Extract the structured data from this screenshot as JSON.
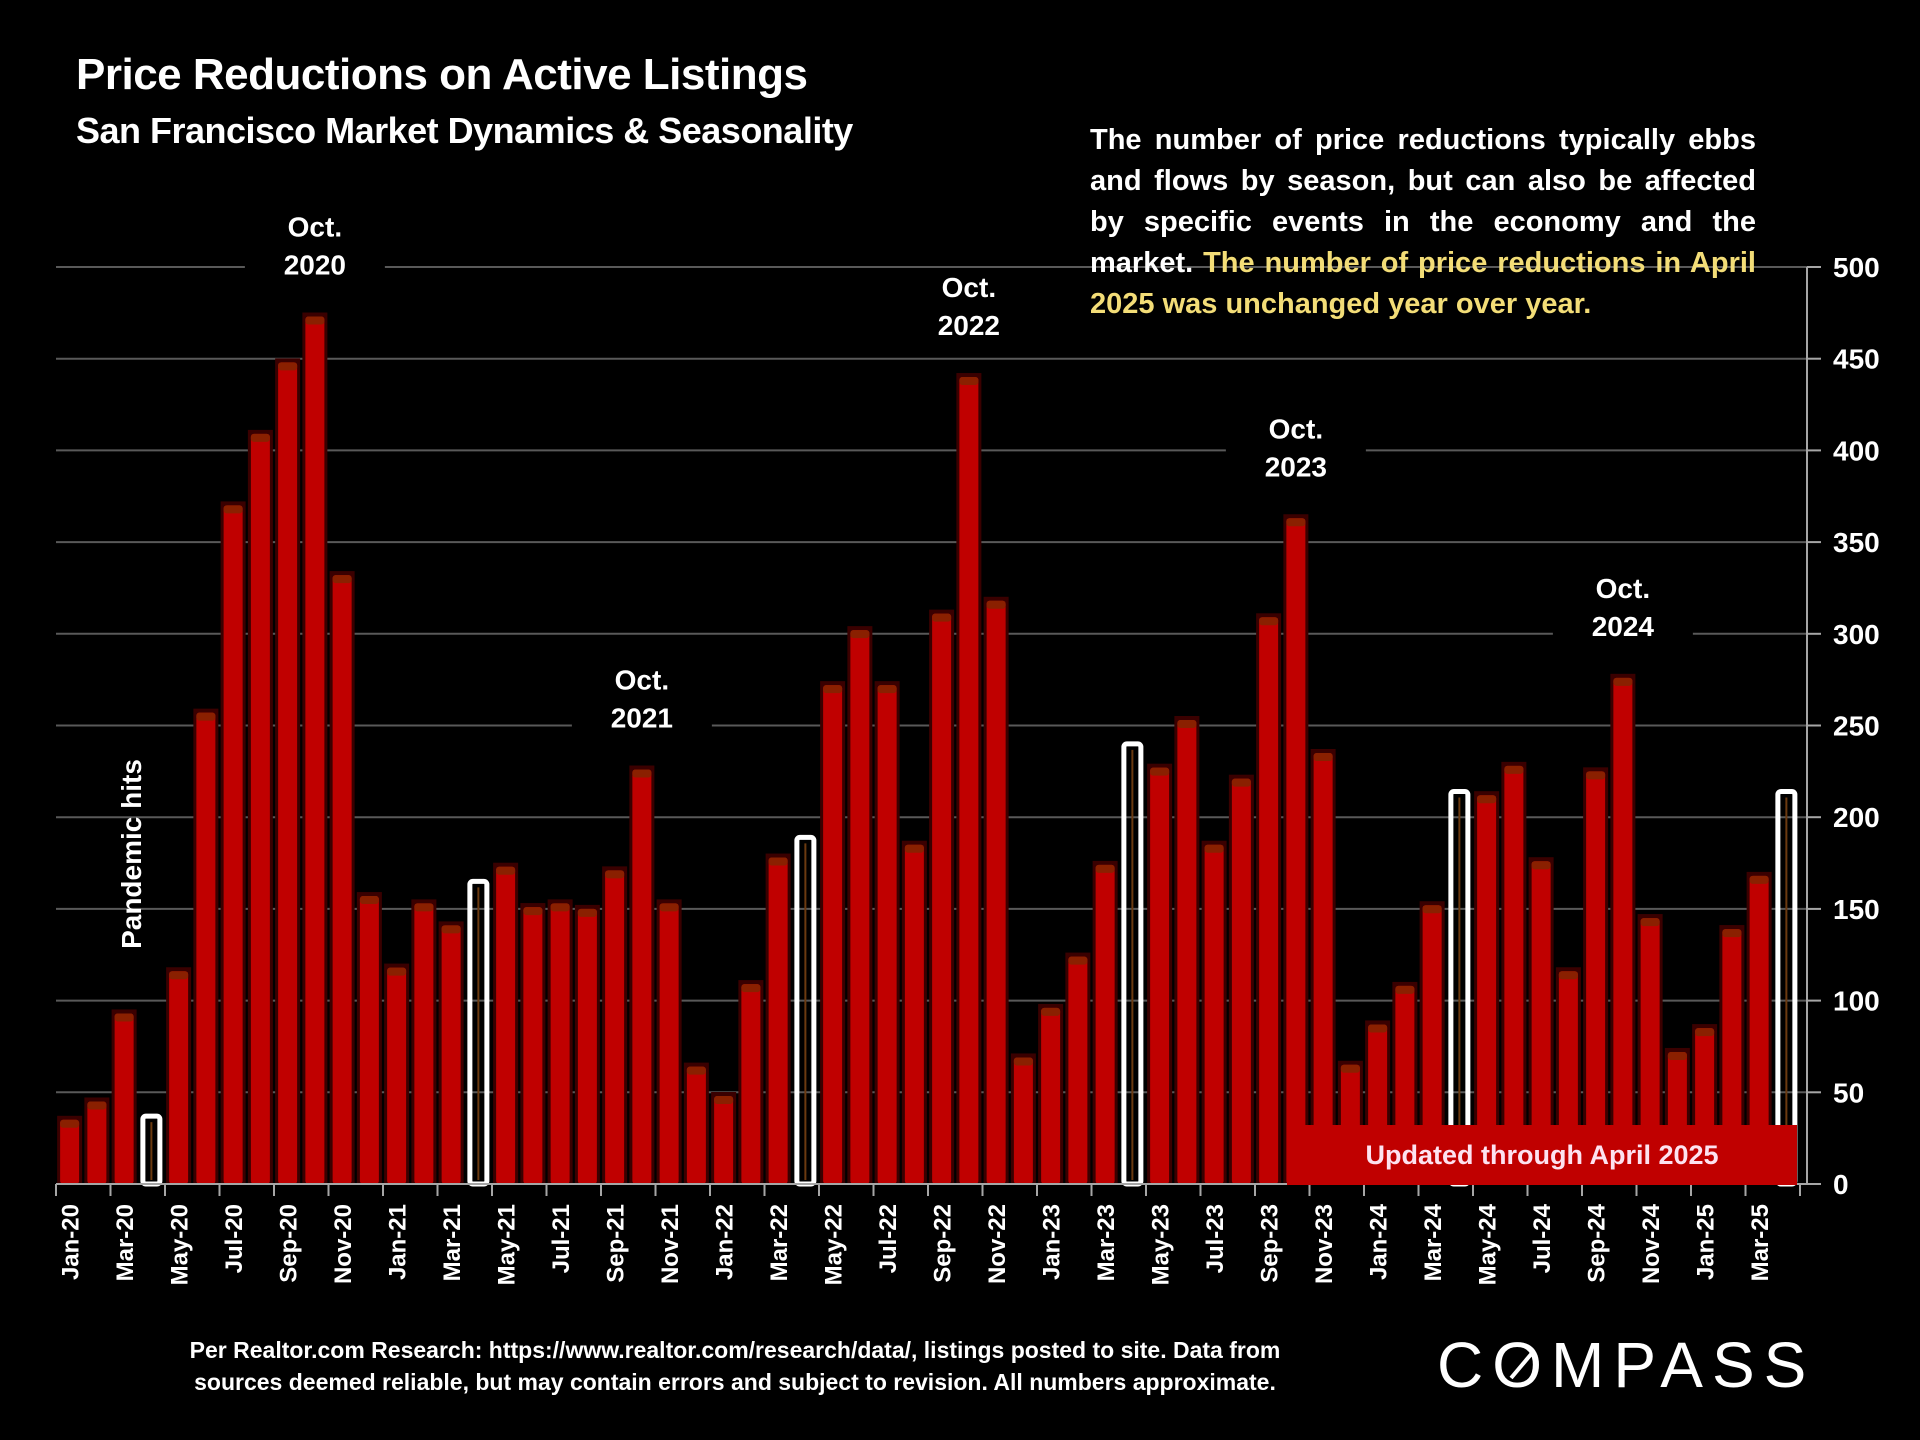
{
  "header": {
    "title": "Price Reductions on Active Listings",
    "subtitle": "San Francisco Market Dynamics & Seasonality"
  },
  "note": {
    "text_white": "The number of price reductions typically ebbs and flows by season, but can also be affected by specific events in the economy and the market.",
    "text_highlight": "The number of price reductions in April 2025 was unchanged year over year."
  },
  "updated_label": "Updated through April 2025",
  "footer": {
    "line1": "Per Realtor.com Research:  https://www.realtor.com/research/data/, listings posted to site. Data from",
    "line2": "sources deemed reliable, but may contain errors and subject to revision. All numbers approximate."
  },
  "logo": {
    "pre": "C",
    "o": "O",
    "post": "MPASS"
  },
  "colors": {
    "bar": "#c00000",
    "highlight_bar": "#ffffff",
    "note_highlight": "#f3dd77",
    "grid": "#595959"
  },
  "chart_data": {
    "type": "bar",
    "title": "Price Reductions on Active Listings",
    "subtitle": "San Francisco Market Dynamics & Seasonality",
    "xlabel": "",
    "ylabel": "",
    "y_axis_side": "right",
    "ylim": [
      0,
      500
    ],
    "yticks": [
      0,
      50,
      100,
      150,
      200,
      250,
      300,
      350,
      400,
      450,
      500
    ],
    "grid": true,
    "categories": [
      "Jan-20",
      "Feb-20",
      "Mar-20",
      "Apr-20",
      "May-20",
      "Jun-20",
      "Jul-20",
      "Aug-20",
      "Sep-20",
      "Oct-20",
      "Nov-20",
      "Dec-20",
      "Jan-21",
      "Feb-21",
      "Mar-21",
      "Apr-21",
      "May-21",
      "Jun-21",
      "Jul-21",
      "Aug-21",
      "Sep-21",
      "Oct-21",
      "Nov-21",
      "Dec-21",
      "Jan-22",
      "Feb-22",
      "Mar-22",
      "Apr-22",
      "May-22",
      "Jun-22",
      "Jul-22",
      "Aug-22",
      "Sep-22",
      "Oct-22",
      "Nov-22",
      "Dec-22",
      "Jan-23",
      "Feb-23",
      "Mar-23",
      "Apr-23",
      "May-23",
      "Jun-23",
      "Jul-23",
      "Aug-23",
      "Sep-23",
      "Oct-23",
      "Nov-23",
      "Dec-23",
      "Jan-24",
      "Feb-24",
      "Mar-24",
      "Apr-24",
      "May-24",
      "Jun-24",
      "Jul-24",
      "Aug-24",
      "Sep-24",
      "Oct-24",
      "Nov-24",
      "Dec-24",
      "Jan-25",
      "Feb-25",
      "Mar-25",
      "Apr-25"
    ],
    "values": [
      35,
      45,
      93,
      37,
      116,
      257,
      370,
      409,
      448,
      473,
      332,
      157,
      118,
      153,
      141,
      165,
      173,
      151,
      153,
      150,
      171,
      226,
      153,
      64,
      48,
      109,
      178,
      189,
      272,
      302,
      272,
      185,
      311,
      440,
      318,
      69,
      96,
      124,
      174,
      240,
      227,
      253,
      185,
      221,
      309,
      363,
      235,
      65,
      87,
      108,
      152,
      214,
      212,
      228,
      176,
      116,
      225,
      276,
      145,
      72,
      85,
      139,
      168,
      214
    ],
    "highlighted": [
      "Apr-20",
      "Apr-21",
      "Apr-22",
      "Apr-23",
      "Apr-24",
      "Apr-25"
    ],
    "tick_labels_shown": [
      "Jan-20",
      "Mar-20",
      "May-20",
      "Jul-20",
      "Sep-20",
      "Nov-20",
      "Jan-21",
      "Mar-21",
      "May-21",
      "Jul-21",
      "Sep-21",
      "Nov-21",
      "Jan-22",
      "Mar-22",
      "May-22",
      "Jul-22",
      "Sep-22",
      "Nov-22",
      "Jan-23",
      "Mar-23",
      "May-23",
      "Jul-23",
      "Sep-23",
      "Nov-23",
      "Jan-24",
      "Mar-24",
      "May-24",
      "Jul-24",
      "Sep-24",
      "Nov-24",
      "Jan-25",
      "Mar-25"
    ],
    "annotations": [
      {
        "text": [
          "Oct.",
          "2020"
        ],
        "category": "Oct-20"
      },
      {
        "text": [
          "Oct.",
          "2021"
        ],
        "category": "Oct-21"
      },
      {
        "text": [
          "Oct.",
          "2022"
        ],
        "category": "Oct-22"
      },
      {
        "text": [
          "Oct.",
          "2023"
        ],
        "category": "Oct-23"
      },
      {
        "text": [
          "Oct.",
          "2024"
        ],
        "category": "Oct-24"
      },
      {
        "text": [
          "Pandemic hits"
        ],
        "category": "Mar-20",
        "rotated": true
      }
    ]
  }
}
